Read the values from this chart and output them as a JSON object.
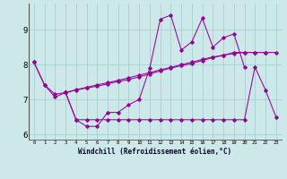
{
  "xlabel": "Windchill (Refroidissement éolien,°C)",
  "background_color": "#cce8e8",
  "line_color": "#990099",
  "series1_x": [
    0,
    1,
    2,
    3,
    4,
    5,
    6,
    7,
    8,
    9,
    10,
    11,
    12,
    13,
    14,
    15,
    16,
    17,
    18,
    19,
    20
  ],
  "series1_y": [
    8.07,
    7.42,
    7.07,
    7.2,
    6.42,
    6.23,
    6.23,
    6.63,
    6.63,
    6.85,
    7.0,
    7.9,
    9.3,
    9.42,
    8.42,
    8.65,
    9.33,
    8.5,
    8.77,
    8.88,
    7.93
  ],
  "series2_x": [
    3,
    4,
    5,
    6,
    7,
    8,
    9,
    10,
    11,
    12,
    13,
    14,
    15,
    16,
    17,
    18,
    19,
    20,
    21,
    22,
    23
  ],
  "series2_y": [
    7.2,
    6.42,
    6.42,
    6.42,
    6.42,
    6.42,
    6.42,
    6.42,
    6.42,
    6.42,
    6.42,
    6.42,
    6.42,
    6.42,
    6.42,
    6.42,
    6.42,
    6.42,
    7.93,
    7.27,
    6.5
  ],
  "series3_x": [
    0,
    1,
    2,
    3,
    4,
    5,
    6,
    7,
    8,
    9,
    10,
    11,
    12,
    13,
    14,
    15,
    16,
    17,
    18,
    19,
    20,
    21,
    22
  ],
  "series3_y": [
    8.07,
    7.42,
    7.15,
    7.2,
    7.27,
    7.33,
    7.38,
    7.45,
    7.52,
    7.57,
    7.65,
    7.73,
    7.82,
    7.9,
    7.97,
    8.03,
    8.12,
    8.2,
    8.27,
    8.35,
    8.35,
    8.35,
    8.35
  ],
  "series4_x": [
    3,
    4,
    5,
    6,
    7,
    8,
    9,
    10,
    11,
    12,
    13,
    14,
    15,
    16,
    17,
    18,
    19,
    20,
    21,
    22,
    23
  ],
  "series4_y": [
    7.2,
    7.28,
    7.35,
    7.42,
    7.48,
    7.55,
    7.62,
    7.7,
    7.77,
    7.85,
    7.92,
    8.0,
    8.07,
    8.15,
    8.22,
    8.27,
    8.32,
    8.35,
    8.35,
    8.35,
    8.35
  ],
  "ylim": [
    5.85,
    9.75
  ],
  "yticks": [
    6,
    7,
    8,
    9
  ],
  "xticks": [
    0,
    1,
    2,
    3,
    4,
    5,
    6,
    7,
    8,
    9,
    10,
    11,
    12,
    13,
    14,
    15,
    16,
    17,
    18,
    19,
    20,
    21,
    22,
    23
  ]
}
